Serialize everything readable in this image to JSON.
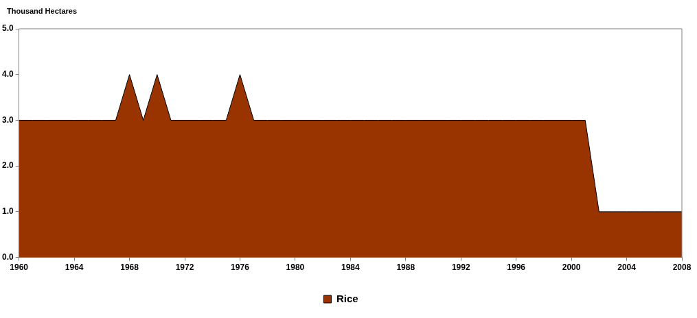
{
  "chart_data": {
    "type": "area",
    "ylabel": "Thousand Hectares",
    "x": [
      1960,
      1961,
      1962,
      1963,
      1964,
      1965,
      1966,
      1967,
      1968,
      1969,
      1970,
      1971,
      1972,
      1973,
      1974,
      1975,
      1976,
      1977,
      1978,
      1979,
      1980,
      1981,
      1982,
      1983,
      1984,
      1985,
      1986,
      1987,
      1988,
      1989,
      1990,
      1991,
      1992,
      1993,
      1994,
      1995,
      1996,
      1997,
      1998,
      1999,
      2000,
      2001,
      2002,
      2003,
      2004,
      2005,
      2006,
      2007,
      2008
    ],
    "series": [
      {
        "name": "Rice",
        "color": "#993300",
        "values": [
          3,
          3,
          3,
          3,
          3,
          3,
          3,
          3,
          4,
          3,
          4,
          3,
          3,
          3,
          3,
          3,
          4,
          3,
          3,
          3,
          3,
          3,
          3,
          3,
          3,
          3,
          3,
          3,
          3,
          3,
          3,
          3,
          3,
          3,
          3,
          3,
          3,
          3,
          3,
          3,
          3,
          3,
          1,
          1,
          1,
          1,
          1,
          1,
          1
        ]
      }
    ],
    "xlim": [
      1960,
      2008
    ],
    "xticks": [
      1960,
      1964,
      1968,
      1972,
      1976,
      1980,
      1984,
      1988,
      1992,
      1996,
      2000,
      2004,
      2008
    ],
    "ylim": [
      0,
      5
    ],
    "yticks": [
      {
        "value": 0,
        "label": "0.0"
      },
      {
        "value": 1,
        "label": "1.0"
      },
      {
        "value": 2,
        "label": "2.0"
      },
      {
        "value": 3,
        "label": "3.0"
      },
      {
        "value": 4,
        "label": "4.0"
      },
      {
        "value": 5,
        "label": "5.0"
      }
    ],
    "grid": false,
    "legend": "bottom",
    "marker": "none",
    "line_style": "solid"
  }
}
